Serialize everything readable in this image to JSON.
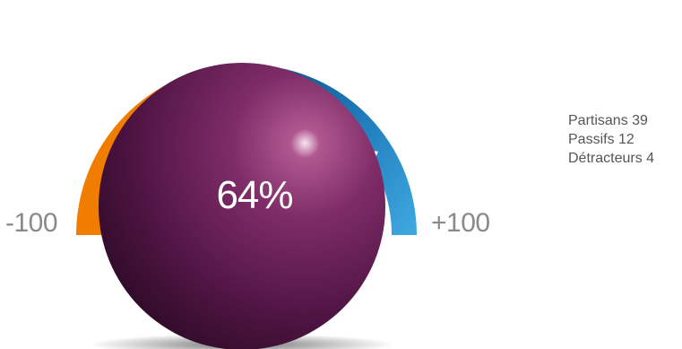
{
  "chart_data": {
    "type": "gauge",
    "value": 64,
    "value_label": "64%",
    "range": [
      -100,
      100
    ],
    "min_label": "-100",
    "max_label": "+100",
    "segments": [
      {
        "from": -100,
        "to": 0,
        "color": "#f07d00"
      },
      {
        "from": 0,
        "to": 100,
        "color": "#2f8fd0"
      }
    ],
    "legend": [
      {
        "label": "Partisans",
        "value": 39
      },
      {
        "label": "Passifs",
        "value": 12
      },
      {
        "label": "Détracteurs",
        "value": 4
      }
    ],
    "ball_color": "#6d2058"
  }
}
